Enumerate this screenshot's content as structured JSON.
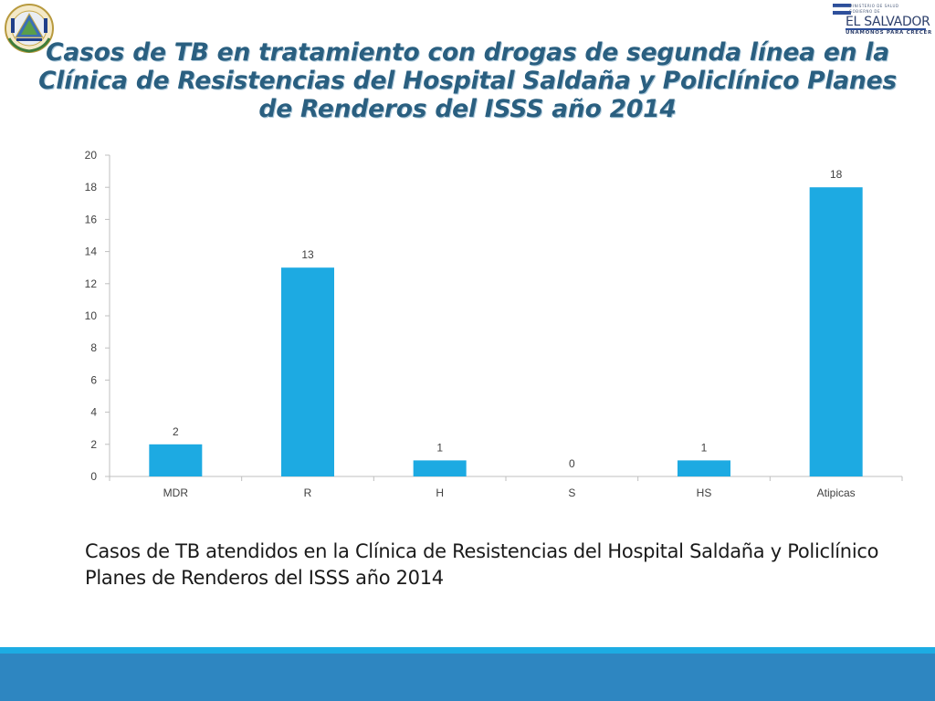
{
  "title": "Casos de TB en tratamiento con drogas de segunda línea en la Clínica de Resistencias del Hospital Saldaña y Policlínico Planes de Renderos del ISSS año 2014",
  "caption": "Casos de TB atendidos en la Clínica de Resistencias del Hospital Saldaña y Policlínico Planes de Renderos del ISSS año 2014",
  "logo_right": {
    "line1": "MINISTERIO DE SALUD",
    "line2": "GOBIERNO DE",
    "name": "EL SALVADOR",
    "tagline": "UNÁMONOS PARA CRECER"
  },
  "colors": {
    "bar": "#1daae2",
    "title": "#2a5f80",
    "footer_thin": "#1dace3",
    "footer_thick": "#2e86c1"
  },
  "chart_data": {
    "type": "bar",
    "categories": [
      "MDR",
      "R",
      "H",
      "S",
      "HS",
      "Atipicas"
    ],
    "values": [
      2,
      13,
      1,
      0,
      1,
      18
    ],
    "data_labels": [
      "2",
      "13",
      "1",
      "0",
      "1",
      "18"
    ],
    "title": "",
    "xlabel": "",
    "ylabel": "",
    "ylim": [
      0,
      20
    ],
    "yticks": [
      0,
      2,
      4,
      6,
      8,
      10,
      12,
      14,
      16,
      18,
      20
    ],
    "grid": false,
    "legend": "none"
  }
}
